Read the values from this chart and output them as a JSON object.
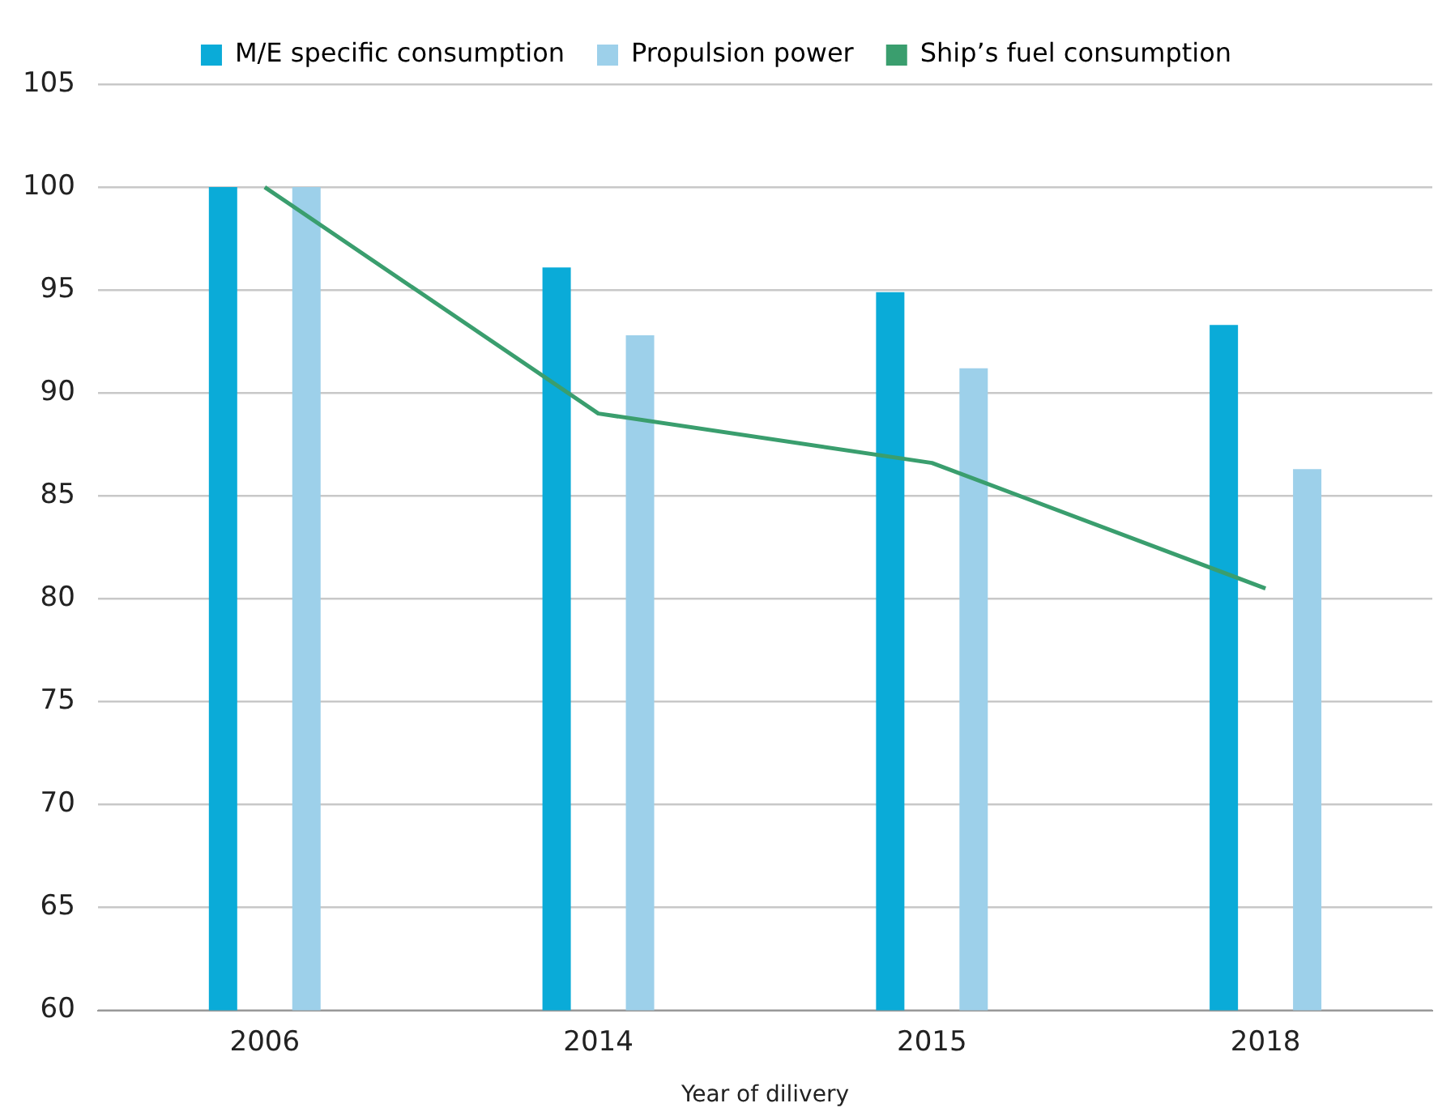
{
  "chart_data": {
    "type": "bar",
    "xlabel": "Year of dilivery",
    "categories": [
      "2006",
      "2014",
      "2015",
      "2018"
    ],
    "series": [
      {
        "name": "M/E specific consumption",
        "color": "#0aabd8",
        "values": [
          100,
          96.1,
          94.9,
          93.3
        ]
      },
      {
        "name": "Propulsion power",
        "color": "#9dd0ea",
        "values": [
          100,
          92.8,
          91.2,
          86.3
        ]
      },
      {
        "name": "Ship’s fuel consumption",
        "type": "line",
        "color": "#3a9e6e",
        "values": [
          100,
          89.0,
          86.6,
          80.5
        ],
        "marker": "none"
      }
    ],
    "ylim": [
      60,
      105
    ],
    "yticks": [
      60,
      65,
      70,
      75,
      80,
      85,
      90,
      95,
      100,
      105
    ],
    "grid": "y",
    "legend": "top"
  }
}
